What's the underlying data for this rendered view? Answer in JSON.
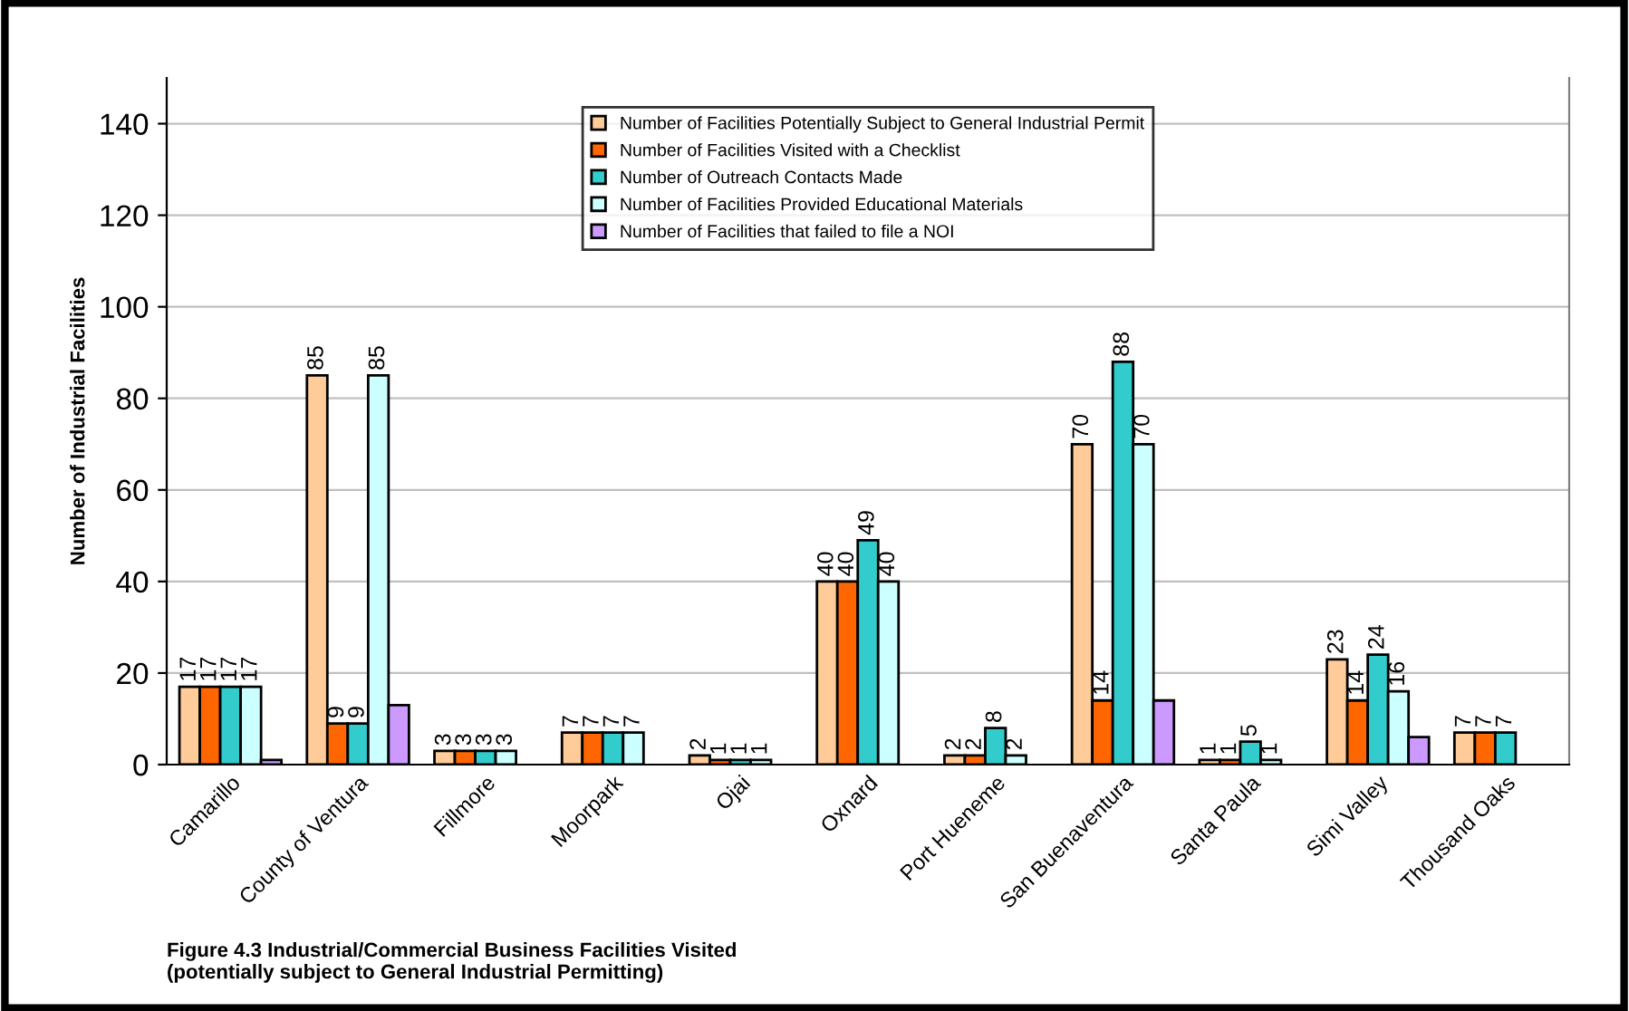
{
  "chart_data": {
    "type": "bar",
    "ylabel": "Number of Industrial Facilities",
    "categories": [
      "Camarillo",
      "County of Ventura",
      "Fillmore",
      "Moorpark",
      "Ojai",
      "Oxnard",
      "Port Hueneme",
      "San Buenaventura",
      "Santa Paula",
      "Simi Valley",
      "Thousand Oaks"
    ],
    "series": [
      {
        "name": "Number of Facilities Potentially Subject to General Industrial Permit",
        "color": "#ffcc99",
        "values": [
          17,
          85,
          3,
          7,
          2,
          40,
          2,
          70,
          1,
          23,
          7
        ],
        "value_labels": [
          "17",
          "85",
          "3",
          "7",
          "2",
          "40",
          "2",
          "70",
          "1",
          "23",
          "7"
        ]
      },
      {
        "name": "Number of Facilities Visited with a Checklist",
        "color": "#ff6600",
        "values": [
          17,
          9,
          3,
          7,
          1,
          40,
          2,
          14,
          1,
          14,
          7
        ],
        "value_labels": [
          "17",
          "9",
          "3",
          "7",
          "1",
          "40",
          "2",
          "14",
          "1",
          "14",
          "7"
        ]
      },
      {
        "name": "Number of Outreach Contacts Made",
        "color": "#33cccc",
        "values": [
          17,
          9,
          3,
          7,
          1,
          49,
          8,
          88,
          5,
          24,
          7
        ],
        "value_labels": [
          "17",
          "9",
          "3",
          "7",
          "1",
          "49",
          "8",
          "88",
          "5",
          "24",
          "7"
        ]
      },
      {
        "name": "Number of Facilities Provided Educational Materials",
        "color": "#ccffff",
        "values": [
          17,
          85,
          3,
          7,
          1,
          40,
          2,
          70,
          1,
          16,
          null
        ],
        "value_labels": [
          "17",
          "85",
          "3",
          "7",
          "1",
          "40",
          "2",
          "70",
          "1",
          "16",
          null
        ]
      },
      {
        "name": "Number of Facilities that failed to file a NOI",
        "color": "#cc99ff",
        "values": [
          1,
          13,
          null,
          null,
          null,
          null,
          null,
          14,
          null,
          6,
          null
        ]
      }
    ],
    "ylim": [
      0,
      150
    ],
    "yticks": [
      0,
      20,
      40,
      60,
      80,
      100,
      120,
      140
    ],
    "grid": "y",
    "legend": "top",
    "annotations": [
      "Figure 4.3 Industrial/Commercial Business Facilities Visited\n(potentially subject to General Industrial Permitting)"
    ]
  }
}
